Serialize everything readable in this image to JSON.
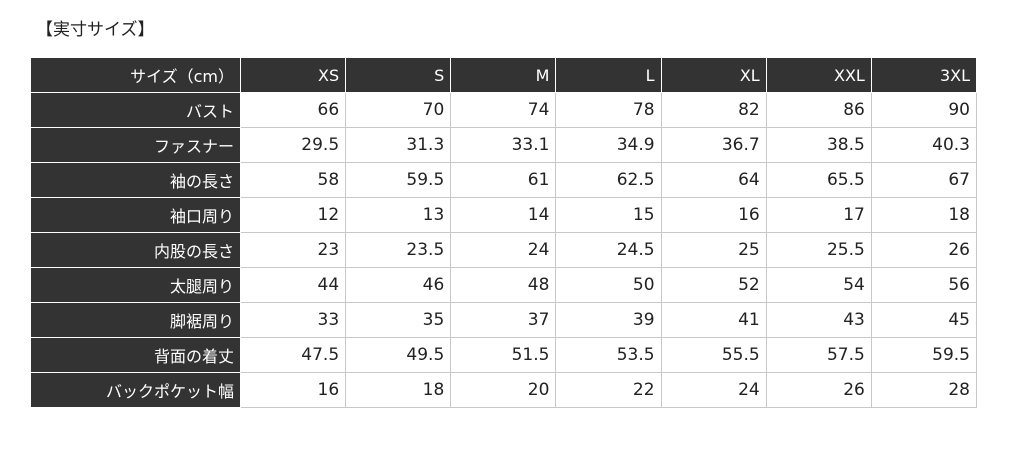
{
  "title": "【実寸サイズ】",
  "table": {
    "header": [
      "サイズ（cm）",
      "XS",
      "S",
      "M",
      "L",
      "XL",
      "XXL",
      "3XL"
    ],
    "rows": [
      [
        "バスト",
        "66",
        "70",
        "74",
        "78",
        "82",
        "86",
        "90"
      ],
      [
        "ファスナー",
        "29.5",
        "31.3",
        "33.1",
        "34.9",
        "36.7",
        "38.5",
        "40.3"
      ],
      [
        "袖の長さ",
        "58",
        "59.5",
        "61",
        "62.5",
        "64",
        "65.5",
        "67"
      ],
      [
        "袖口周り",
        "12",
        "13",
        "14",
        "15",
        "16",
        "17",
        "18"
      ],
      [
        "内股の長さ",
        "23",
        "23.5",
        "24",
        "24.5",
        "25",
        "25.5",
        "26"
      ],
      [
        "太腿周り",
        "44",
        "46",
        "48",
        "50",
        "52",
        "54",
        "56"
      ],
      [
        "脚裾周り",
        "33",
        "35",
        "37",
        "39",
        "41",
        "43",
        "45"
      ],
      [
        "背面の着丈",
        "47.5",
        "49.5",
        "51.5",
        "53.5",
        "55.5",
        "57.5",
        "59.5"
      ],
      [
        "バックポケット幅",
        "16",
        "18",
        "20",
        "22",
        "24",
        "26",
        "28"
      ]
    ]
  }
}
